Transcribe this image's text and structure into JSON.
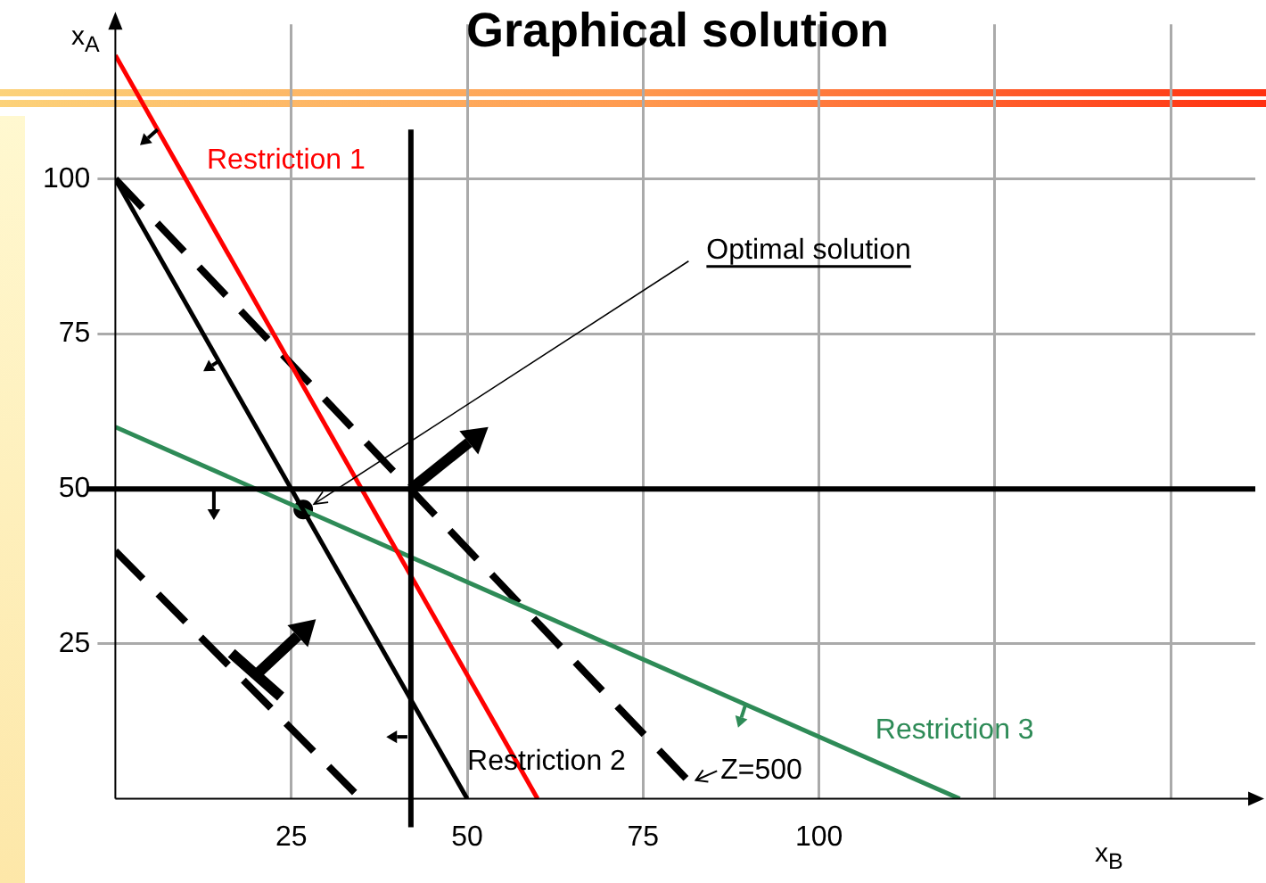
{
  "chart_data": {
    "type": "line",
    "title": "Graphical solution",
    "xlabel": "x$_{B}$",
    "ylabel": "x$_{A}$",
    "xlim": [
      0,
      162
    ],
    "ylim": [
      0,
      125
    ],
    "xticks": [
      25,
      50,
      75,
      100,
      {
        "value": 125,
        "label": null
      },
      {
        "value": 150,
        "label": null
      }
    ],
    "yticks": [
      25,
      50,
      75,
      100
    ],
    "grid": true,
    "legend": false,
    "marker": "none",
    "series": [
      {
        "name": "Restriction 1",
        "color": "#ff0000",
        "x": [
          0,
          60
        ],
        "values": [
          120,
          0
        ]
      },
      {
        "name": "Restriction 2",
        "color": "#000000",
        "x": [
          0,
          50
        ],
        "values": [
          100,
          0
        ]
      },
      {
        "name": "Restriction 3",
        "color": "#2e8b57",
        "x": [
          0,
          120
        ],
        "values": [
          60,
          0
        ]
      },
      {
        "color": "#000000",
        "x": [
          0,
          83
        ],
        "values": [
          100,
          1
        ],
        "line_style": "dashed"
      },
      {
        "color": "#000000",
        "x": [
          0,
          34
        ],
        "values": [
          40,
          1
        ],
        "line_style": "dashed"
      },
      {
        "type": "scatter",
        "color": "#000000",
        "x": [
          26.7
        ],
        "values": [
          46.7
        ],
        "marker": "circle"
      }
    ],
    "ref_lines": [
      {
        "axis": "x",
        "value": 42,
        "color": "#000000"
      },
      {
        "axis": "y",
        "value": 50,
        "color": "#000000"
      }
    ],
    "annotations": [
      {
        "text": "Optimal solution",
        "x": 26.7,
        "y": 46.7
      },
      {
        "text": "Z=500",
        "x": 83,
        "y": 1
      }
    ]
  }
}
